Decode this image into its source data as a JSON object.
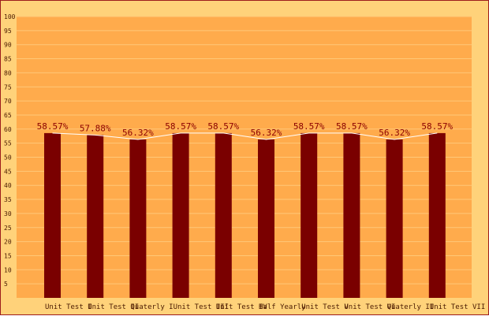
{
  "chart_data": {
    "type": "bar",
    "categories": [
      "Unit Test I",
      "Unit Test II",
      "Quaterly I",
      "Unit Test III",
      "Unit Test IV",
      "Half Yearly",
      "Unit Test V",
      "Unit Test VI",
      "Quaterly II",
      "Unit Test VII"
    ],
    "values": [
      58.57,
      57.88,
      56.32,
      58.57,
      58.57,
      56.32,
      58.57,
      58.57,
      56.32,
      58.57
    ],
    "data_labels": [
      "58.57%",
      "57.88%",
      "56.32%",
      "58.57%",
      "58.57%",
      "56.32%",
      "58.57%",
      "58.57%",
      "56.32%",
      "58.57%"
    ],
    "ylim": [
      0,
      100
    ],
    "yticks": [
      5,
      10,
      15,
      20,
      25,
      30,
      35,
      40,
      45,
      50,
      55,
      60,
      65,
      70,
      75,
      80,
      85,
      90,
      95,
      100
    ],
    "grid": true,
    "title": "",
    "xlabel": "",
    "ylabel": "",
    "overlay_line": true,
    "colors": {
      "background": "#ffd27a",
      "plot_area": "#ffab4c",
      "bar": "#7a0000",
      "grid": "#ffc878",
      "line": "#ffffff",
      "label": "#8b0000",
      "border": "#9c1c1c"
    }
  }
}
